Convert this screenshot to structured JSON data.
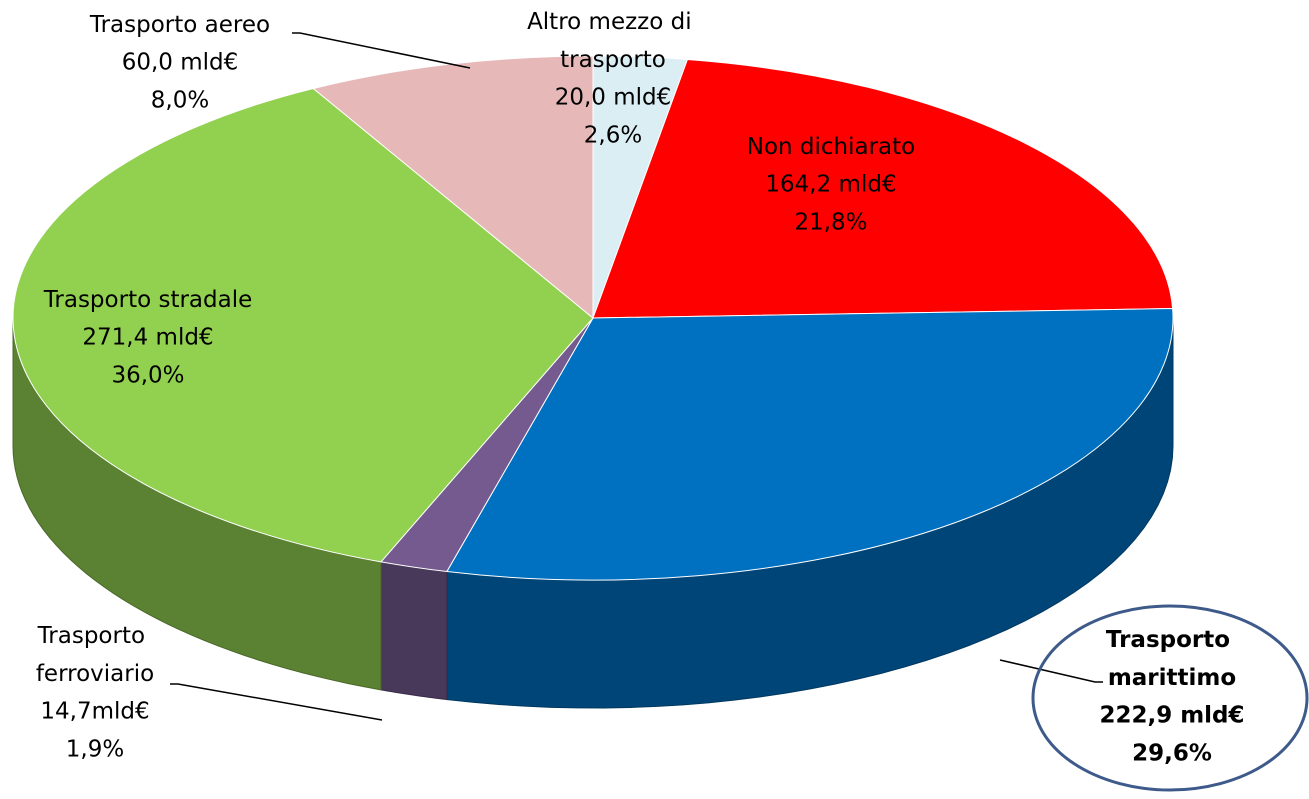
{
  "chart_data": {
    "type": "pie3d",
    "categories": [
      "Altro mezzo di trasporto",
      "Non dichiarato",
      "Trasporto marittimo",
      "Trasporto ferroviario",
      "Trasporto stradale",
      "Trasporto aereo"
    ],
    "values": [
      2.6,
      21.8,
      29.6,
      1.9,
      36.0,
      8.0
    ],
    "value_labels": [
      "2,6%",
      "21,8%",
      "29,6%",
      "1,9%",
      "36,0%",
      "8,0%"
    ],
    "amounts": [
      20.0,
      164.2,
      222.9,
      14.7,
      271.4,
      60.0
    ],
    "amount_labels": [
      "20,0 mld€",
      "164,2 mld€",
      "222,9 mld€",
      "14,7mld€",
      "271,4 mld€",
      "60,0 mld€"
    ],
    "colors": [
      "#dbeef4",
      "#ff0000",
      "#0070c0",
      "#745a8f",
      "#92d050",
      "#e6b9b8"
    ]
  }
}
